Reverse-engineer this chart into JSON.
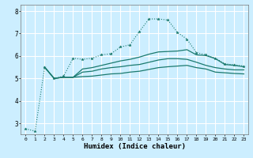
{
  "title": "",
  "xlabel": "Humidex (Indice chaleur)",
  "ylabel": "",
  "bg_color": "#cceeff",
  "grid_color": "#ffffff",
  "line_color": "#1a7a6e",
  "xlim": [
    -0.5,
    23.5
  ],
  "ylim": [
    2.5,
    8.3
  ],
  "yticks": [
    3,
    4,
    5,
    6,
    7,
    8
  ],
  "xticks": [
    0,
    1,
    2,
    3,
    4,
    5,
    6,
    7,
    8,
    9,
    10,
    11,
    12,
    13,
    14,
    15,
    16,
    17,
    18,
    19,
    20,
    21,
    22,
    23
  ],
  "line1_x": [
    0,
    1,
    2,
    3,
    4,
    5,
    6,
    7,
    8,
    9,
    10,
    11,
    12,
    13,
    14,
    15,
    16,
    17,
    18,
    19,
    20,
    21,
    22,
    23
  ],
  "line1_y": [
    2.75,
    2.65,
    5.5,
    5.0,
    5.1,
    5.9,
    5.85,
    5.9,
    6.05,
    6.1,
    6.4,
    6.5,
    7.1,
    7.65,
    7.65,
    7.6,
    7.05,
    6.75,
    6.15,
    6.05,
    5.9,
    5.65,
    5.6,
    5.55
  ],
  "line2_x": [
    2,
    3,
    4,
    5,
    6,
    7,
    8,
    9,
    10,
    11,
    12,
    13,
    14,
    15,
    16,
    17,
    18,
    19,
    20,
    21,
    22,
    23
  ],
  "line2_y": [
    5.5,
    5.0,
    5.05,
    5.05,
    5.42,
    5.48,
    5.58,
    5.68,
    5.78,
    5.85,
    5.95,
    6.08,
    6.18,
    6.2,
    6.22,
    6.28,
    6.05,
    6.02,
    5.88,
    5.62,
    5.58,
    5.52
  ],
  "line3_x": [
    2,
    3,
    4,
    5,
    6,
    7,
    8,
    9,
    10,
    11,
    12,
    13,
    14,
    15,
    16,
    17,
    18,
    19,
    20,
    21,
    22,
    23
  ],
  "line3_y": [
    5.5,
    5.0,
    5.05,
    5.05,
    5.28,
    5.32,
    5.42,
    5.48,
    5.52,
    5.58,
    5.62,
    5.72,
    5.82,
    5.88,
    5.88,
    5.85,
    5.72,
    5.58,
    5.48,
    5.42,
    5.38,
    5.38
  ],
  "line4_x": [
    2,
    3,
    4,
    5,
    6,
    7,
    8,
    9,
    10,
    11,
    12,
    13,
    14,
    15,
    16,
    17,
    18,
    19,
    20,
    21,
    22,
    23
  ],
  "line4_y": [
    5.5,
    5.0,
    5.05,
    5.05,
    5.08,
    5.1,
    5.15,
    5.2,
    5.22,
    5.28,
    5.32,
    5.4,
    5.48,
    5.52,
    5.55,
    5.58,
    5.48,
    5.42,
    5.28,
    5.25,
    5.22,
    5.2
  ]
}
